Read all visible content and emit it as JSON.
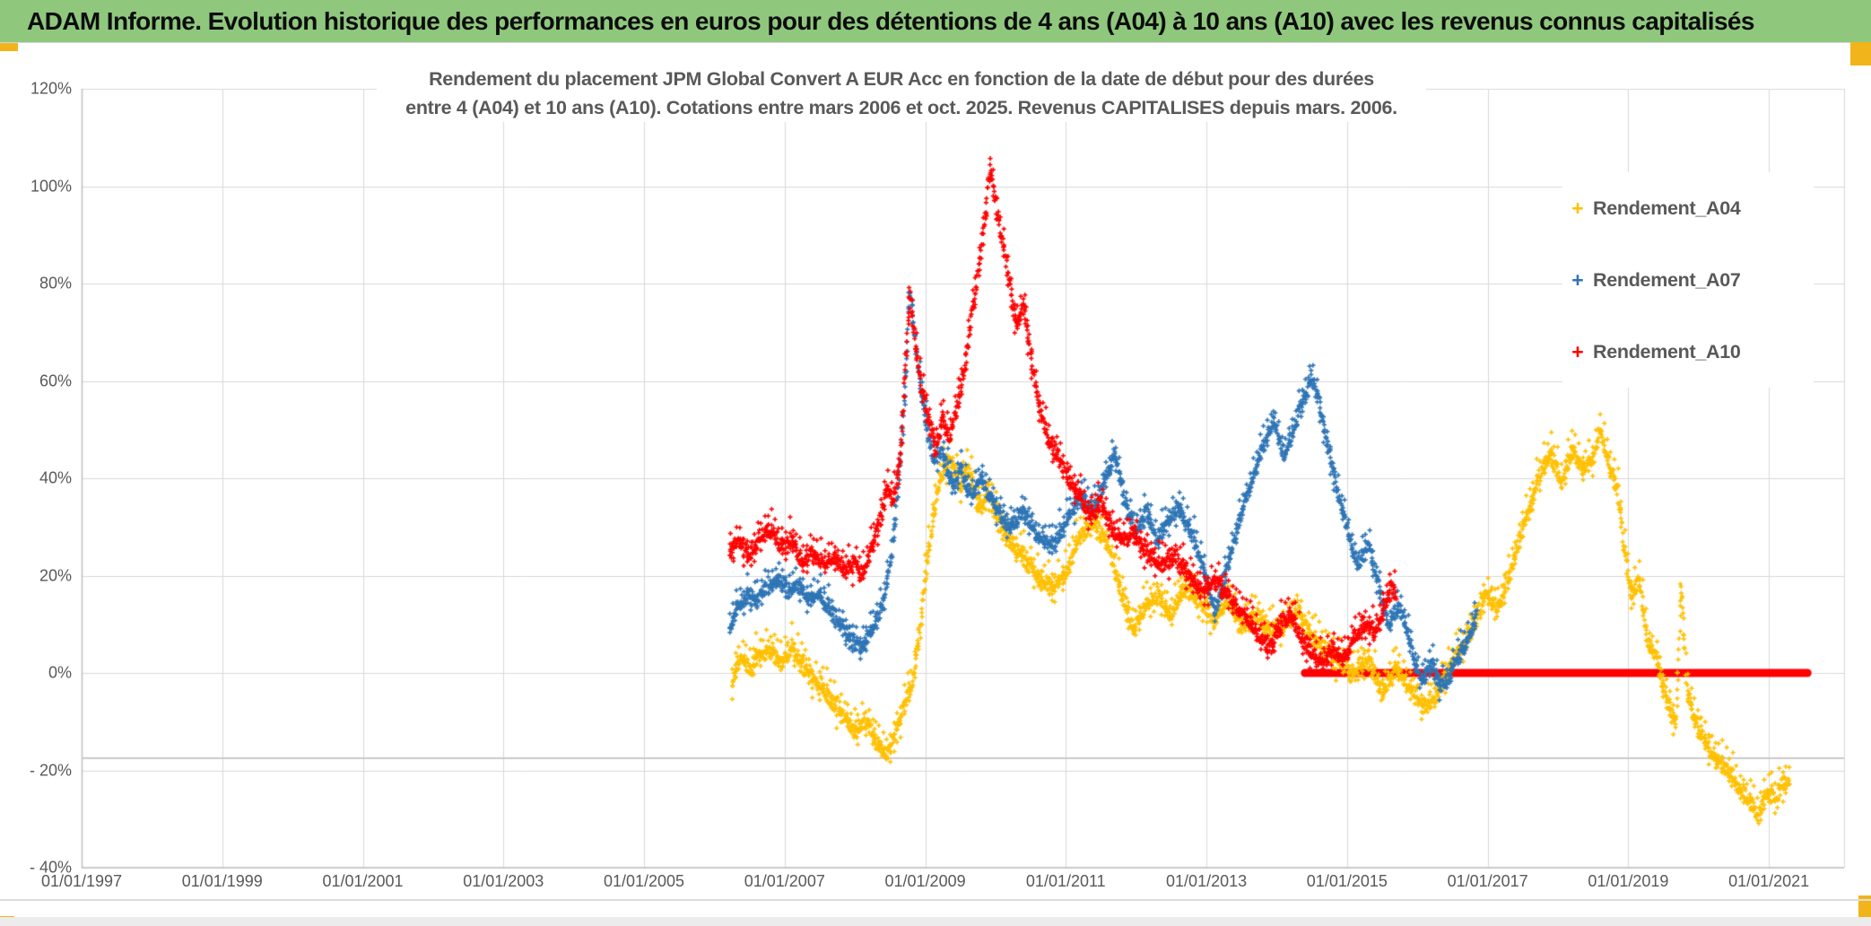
{
  "header": {
    "title": "ADAM Informe. Evolution historique des performances en euros pour des détentions de 4 ans (A04) à 10 ans (A10) avec les revenus connus capitalisés"
  },
  "chart_data": {
    "type": "scatter",
    "title_line1": "Rendement du placement JPM Global Convert A EUR Acc en fonction de la date de début pour des durées",
    "title_line2": "entre 4 (A04) et 10 ans (A10). Cotations entre mars 2006 et oct. 2025. Revenus CAPITALISES depuis mars. 2006.",
    "xlabel": "",
    "ylabel": "",
    "xlim": [
      1997,
      2022.07
    ],
    "ylim": [
      -40,
      120
    ],
    "grid": true,
    "legend_position": "top-right",
    "x_ticks": [
      {
        "label": "01/01/1997",
        "year": 1997
      },
      {
        "label": "01/01/1999",
        "year": 1999
      },
      {
        "label": "01/01/2001",
        "year": 2001
      },
      {
        "label": "01/01/2003",
        "year": 2003
      },
      {
        "label": "01/01/2005",
        "year": 2005
      },
      {
        "label": "01/01/2007",
        "year": 2007
      },
      {
        "label": "01/01/2009",
        "year": 2009
      },
      {
        "label": "01/01/2011",
        "year": 2011
      },
      {
        "label": "01/01/2013",
        "year": 2013
      },
      {
        "label": "01/01/2015",
        "year": 2015
      },
      {
        "label": "01/01/2017",
        "year": 2017
      },
      {
        "label": "01/01/2019",
        "year": 2019
      },
      {
        "label": "01/01/2021",
        "year": 2021
      }
    ],
    "y_ticks": [
      {
        "label": "120%",
        "value": 120
      },
      {
        "label": "100%",
        "value": 100
      },
      {
        "label": "80%",
        "value": 80
      },
      {
        "label": "60%",
        "value": 60
      },
      {
        "label": "40%",
        "value": 40
      },
      {
        "label": "20%",
        "value": 20
      },
      {
        "label": "0%",
        "value": 0
      },
      {
        "label": "- 20%",
        "value": -20
      },
      {
        "label": "- 40%",
        "value": -40
      }
    ],
    "colors": {
      "grid": "#D9D9D9",
      "axis": "#BFBFBF",
      "extra_line": "#C9C9C9",
      "text": "#595959",
      "header_green": "#8FC87D",
      "corner_yellow": "#F2B41B"
    },
    "extra_hline": {
      "value": -17.5
    },
    "zero_line": {
      "series": "Rendement_A10",
      "from": 2014.4,
      "to": 2021.55,
      "value": 0,
      "color": "#FF0000",
      "thickness": 9
    },
    "series": [
      {
        "name": "Rendement_A04",
        "color": "#FFC000",
        "marker": "plus",
        "spread": 2.3,
        "points": [
          [
            2006.25,
            -2
          ],
          [
            2006.35,
            3
          ],
          [
            2006.5,
            1
          ],
          [
            2006.65,
            4
          ],
          [
            2006.8,
            5
          ],
          [
            2006.95,
            2
          ],
          [
            2007.1,
            5
          ],
          [
            2007.25,
            2
          ],
          [
            2007.45,
            -2
          ],
          [
            2007.65,
            -5
          ],
          [
            2007.85,
            -9
          ],
          [
            2008.0,
            -12
          ],
          [
            2008.15,
            -10
          ],
          [
            2008.3,
            -14
          ],
          [
            2008.45,
            -17
          ],
          [
            2008.6,
            -11
          ],
          [
            2008.72,
            -6
          ],
          [
            2008.82,
            -2
          ],
          [
            2008.92,
            8
          ],
          [
            2009.02,
            22
          ],
          [
            2009.12,
            33
          ],
          [
            2009.22,
            40
          ],
          [
            2009.35,
            44
          ],
          [
            2009.5,
            39
          ],
          [
            2009.6,
            43
          ],
          [
            2009.75,
            34
          ],
          [
            2009.9,
            37
          ],
          [
            2010.05,
            31
          ],
          [
            2010.2,
            27
          ],
          [
            2010.4,
            24
          ],
          [
            2010.6,
            20
          ],
          [
            2010.8,
            17
          ],
          [
            2011.0,
            21
          ],
          [
            2011.2,
            28
          ],
          [
            2011.4,
            31
          ],
          [
            2011.6,
            27
          ],
          [
            2011.8,
            16
          ],
          [
            2011.95,
            9
          ],
          [
            2012.1,
            13
          ],
          [
            2012.3,
            16
          ],
          [
            2012.5,
            12
          ],
          [
            2012.7,
            18
          ],
          [
            2012.9,
            15
          ],
          [
            2013.1,
            11
          ],
          [
            2013.3,
            14
          ],
          [
            2013.5,
            10
          ],
          [
            2013.7,
            12
          ],
          [
            2013.9,
            8
          ],
          [
            2014.1,
            10
          ],
          [
            2014.3,
            13
          ],
          [
            2014.5,
            7
          ],
          [
            2014.7,
            5
          ],
          [
            2014.9,
            2
          ],
          [
            2015.1,
            0
          ],
          [
            2015.3,
            3
          ],
          [
            2015.5,
            -4
          ],
          [
            2015.7,
            1
          ],
          [
            2015.9,
            -3
          ],
          [
            2016.1,
            -7
          ],
          [
            2016.3,
            -4
          ],
          [
            2016.5,
            2
          ],
          [
            2016.7,
            7
          ],
          [
            2016.85,
            12
          ],
          [
            2017.0,
            16
          ],
          [
            2017.15,
            13
          ],
          [
            2017.3,
            20
          ],
          [
            2017.45,
            27
          ],
          [
            2017.6,
            34
          ],
          [
            2017.75,
            41
          ],
          [
            2017.9,
            45
          ],
          [
            2018.05,
            39
          ],
          [
            2018.2,
            46
          ],
          [
            2018.35,
            42
          ],
          [
            2018.5,
            44
          ],
          [
            2018.6,
            50
          ],
          [
            2018.72,
            43
          ],
          [
            2018.85,
            38
          ],
          [
            2018.95,
            25
          ],
          [
            2019.05,
            15
          ],
          [
            2019.15,
            20
          ],
          [
            2019.25,
            8
          ],
          [
            2019.4,
            3
          ],
          [
            2019.55,
            -6
          ],
          [
            2019.68,
            -10
          ],
          [
            2019.76,
            18
          ],
          [
            2019.84,
            -4
          ],
          [
            2019.95,
            -10
          ],
          [
            2020.1,
            -14
          ],
          [
            2020.25,
            -18
          ],
          [
            2020.4,
            -20
          ],
          [
            2020.55,
            -23
          ],
          [
            2020.7,
            -26
          ],
          [
            2020.85,
            -29
          ],
          [
            2021.0,
            -24
          ],
          [
            2021.1,
            -26
          ],
          [
            2021.2,
            -22
          ],
          [
            2021.3,
            -23
          ]
        ]
      },
      {
        "name": "Rendement_A07",
        "color": "#2E75B6",
        "marker": "plus",
        "spread": 2.0,
        "points": [
          [
            2006.22,
            8
          ],
          [
            2006.3,
            13
          ],
          [
            2006.45,
            16
          ],
          [
            2006.6,
            15
          ],
          [
            2006.75,
            18
          ],
          [
            2006.9,
            19
          ],
          [
            2007.05,
            17
          ],
          [
            2007.2,
            18
          ],
          [
            2007.35,
            15
          ],
          [
            2007.5,
            16
          ],
          [
            2007.65,
            13
          ],
          [
            2007.8,
            10
          ],
          [
            2007.95,
            7
          ],
          [
            2008.1,
            5
          ],
          [
            2008.25,
            9
          ],
          [
            2008.4,
            14
          ],
          [
            2008.52,
            24
          ],
          [
            2008.62,
            38
          ],
          [
            2008.72,
            58
          ],
          [
            2008.78,
            79
          ],
          [
            2008.85,
            69
          ],
          [
            2008.93,
            59
          ],
          [
            2009.03,
            50
          ],
          [
            2009.13,
            43
          ],
          [
            2009.25,
            46
          ],
          [
            2009.38,
            38
          ],
          [
            2009.5,
            42
          ],
          [
            2009.65,
            36
          ],
          [
            2009.8,
            40
          ],
          [
            2010.0,
            34
          ],
          [
            2010.2,
            30
          ],
          [
            2010.4,
            33
          ],
          [
            2010.6,
            28
          ],
          [
            2010.8,
            26
          ],
          [
            2011.0,
            31
          ],
          [
            2011.2,
            36
          ],
          [
            2011.4,
            33
          ],
          [
            2011.55,
            40
          ],
          [
            2011.7,
            45
          ],
          [
            2011.85,
            35
          ],
          [
            2012.0,
            29
          ],
          [
            2012.15,
            33
          ],
          [
            2012.3,
            27
          ],
          [
            2012.45,
            31
          ],
          [
            2012.6,
            34
          ],
          [
            2012.75,
            30
          ],
          [
            2012.9,
            24
          ],
          [
            2013.02,
            18
          ],
          [
            2013.12,
            13
          ],
          [
            2013.22,
            17
          ],
          [
            2013.35,
            25
          ],
          [
            2013.5,
            33
          ],
          [
            2013.65,
            40
          ],
          [
            2013.8,
            46
          ],
          [
            2013.95,
            52
          ],
          [
            2014.1,
            45
          ],
          [
            2014.25,
            50
          ],
          [
            2014.4,
            57
          ],
          [
            2014.5,
            61
          ],
          [
            2014.62,
            54
          ],
          [
            2014.72,
            48
          ],
          [
            2014.85,
            38
          ],
          [
            2015.0,
            30
          ],
          [
            2015.15,
            22
          ],
          [
            2015.3,
            27
          ],
          [
            2015.45,
            18
          ],
          [
            2015.6,
            10
          ],
          [
            2015.75,
            14
          ],
          [
            2015.9,
            6
          ],
          [
            2016.05,
            -2
          ],
          [
            2016.2,
            2
          ],
          [
            2016.35,
            -3
          ],
          [
            2016.5,
            1
          ],
          [
            2016.62,
            4
          ],
          [
            2016.75,
            8
          ],
          [
            2016.85,
            13
          ]
        ]
      },
      {
        "name": "Rendement_A10",
        "color": "#FF0000",
        "marker": "plus",
        "spread": 2.2,
        "points": [
          [
            2006.22,
            25
          ],
          [
            2006.35,
            27
          ],
          [
            2006.5,
            24
          ],
          [
            2006.65,
            28
          ],
          [
            2006.8,
            30
          ],
          [
            2006.95,
            26
          ],
          [
            2007.1,
            27
          ],
          [
            2007.25,
            23
          ],
          [
            2007.4,
            25
          ],
          [
            2007.55,
            22
          ],
          [
            2007.7,
            24
          ],
          [
            2007.85,
            21
          ],
          [
            2008.0,
            23
          ],
          [
            2008.1,
            20
          ],
          [
            2008.22,
            25
          ],
          [
            2008.35,
            31
          ],
          [
            2008.45,
            38
          ],
          [
            2008.55,
            35
          ],
          [
            2008.65,
            45
          ],
          [
            2008.73,
            65
          ],
          [
            2008.78,
            78
          ],
          [
            2008.85,
            68
          ],
          [
            2008.95,
            58
          ],
          [
            2009.05,
            52
          ],
          [
            2009.15,
            46
          ],
          [
            2009.25,
            52
          ],
          [
            2009.35,
            48
          ],
          [
            2009.45,
            55
          ],
          [
            2009.55,
            62
          ],
          [
            2009.65,
            72
          ],
          [
            2009.75,
            82
          ],
          [
            2009.85,
            93
          ],
          [
            2009.92,
            104
          ],
          [
            2010.0,
            97
          ],
          [
            2010.1,
            88
          ],
          [
            2010.2,
            80
          ],
          [
            2010.3,
            72
          ],
          [
            2010.4,
            76
          ],
          [
            2010.5,
            66
          ],
          [
            2010.62,
            55
          ],
          [
            2010.75,
            48
          ],
          [
            2010.9,
            44
          ],
          [
            2011.05,
            40
          ],
          [
            2011.2,
            36
          ],
          [
            2011.35,
            32
          ],
          [
            2011.5,
            35
          ],
          [
            2011.65,
            30
          ],
          [
            2011.8,
            27
          ],
          [
            2011.95,
            29
          ],
          [
            2012.15,
            25
          ],
          [
            2012.35,
            22
          ],
          [
            2012.55,
            24
          ],
          [
            2012.75,
            20
          ],
          [
            2012.95,
            17
          ],
          [
            2013.15,
            19
          ],
          [
            2013.35,
            15
          ],
          [
            2013.55,
            12
          ],
          [
            2013.75,
            8
          ],
          [
            2013.9,
            5
          ],
          [
            2014.05,
            10
          ],
          [
            2014.2,
            12
          ],
          [
            2014.35,
            7
          ],
          [
            2014.5,
            4
          ],
          [
            2014.65,
            2
          ],
          [
            2014.8,
            5
          ],
          [
            2014.95,
            3
          ],
          [
            2015.1,
            7
          ],
          [
            2015.25,
            10
          ],
          [
            2015.4,
            8
          ],
          [
            2015.55,
            14
          ],
          [
            2015.63,
            18
          ],
          [
            2015.7,
            16
          ]
        ]
      }
    ]
  }
}
